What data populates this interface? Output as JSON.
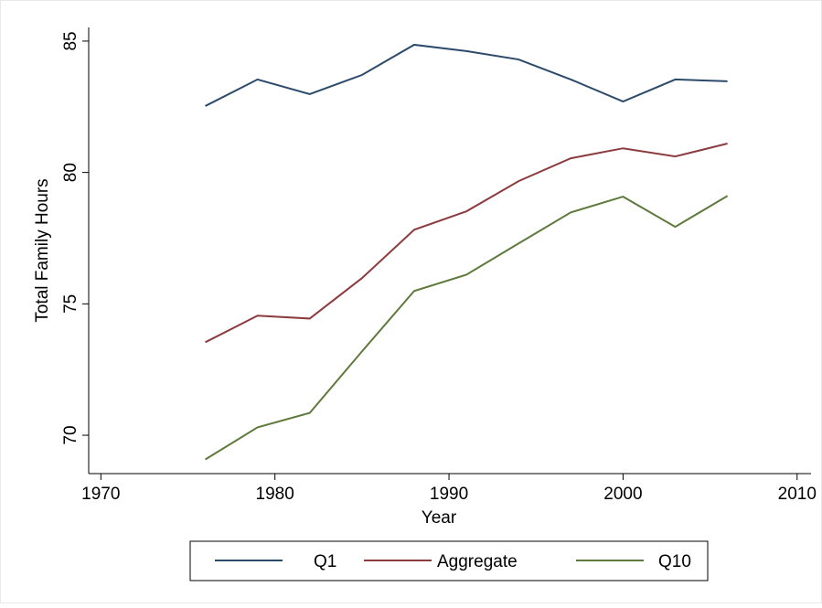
{
  "chart_data": {
    "type": "line",
    "x": [
      1976,
      1979,
      1982,
      1985,
      1988,
      1991,
      1994,
      1997,
      2000,
      2003,
      2006
    ],
    "series": [
      {
        "name": "Q1",
        "color": "#2c4b6b",
        "values": [
          82.53,
          83.54,
          82.98,
          83.71,
          84.86,
          84.62,
          84.3,
          83.54,
          82.7,
          83.54,
          83.47
        ]
      },
      {
        "name": "Aggregate",
        "color": "#8c3b3e",
        "values": [
          73.54,
          74.55,
          74.44,
          75.98,
          77.82,
          78.52,
          79.67,
          80.54,
          80.92,
          80.61,
          81.1
        ]
      },
      {
        "name": "Q10",
        "color": "#5e7a3c",
        "values": [
          69.08,
          70.3,
          70.85,
          73.19,
          75.49,
          76.11,
          77.3,
          78.48,
          79.08,
          77.93,
          79.11
        ]
      }
    ],
    "xlabel": "Year",
    "ylabel": "Total Family Hours",
    "xlim": [
      1969.3,
      2010.8
    ],
    "ylim": [
      68.54,
      85.52
    ],
    "xticks": [
      1970,
      1980,
      1990,
      2000,
      2010
    ],
    "yticks": [
      70,
      75,
      80,
      85
    ],
    "legend": "bottom"
  }
}
